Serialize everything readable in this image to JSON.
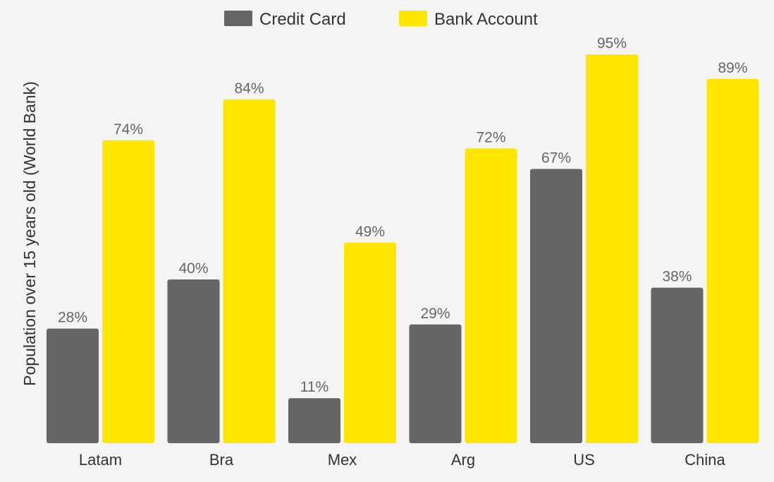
{
  "chart_data": {
    "type": "bar",
    "categories": [
      "Latam",
      "Bra",
      "Mex",
      "Arg",
      "US",
      "China"
    ],
    "series": [
      {
        "name": "Credit Card",
        "values": [
          28,
          40,
          11,
          29,
          67,
          38
        ],
        "labels": [
          "28%",
          "40%",
          "11%",
          "29%",
          "67%",
          "38%"
        ],
        "color": "#666666"
      },
      {
        "name": "Bank Account",
        "values": [
          74,
          84,
          49,
          72,
          95,
          89
        ],
        "labels": [
          "74%",
          "84%",
          "49%",
          "72%",
          "95%",
          "89%"
        ],
        "color": "#ffe600"
      }
    ],
    "ylabel": "Population over 15 years old (World Bank)",
    "xlabel": "",
    "ylim": [
      0,
      100
    ],
    "grid": false,
    "legend_position": "top-center"
  }
}
